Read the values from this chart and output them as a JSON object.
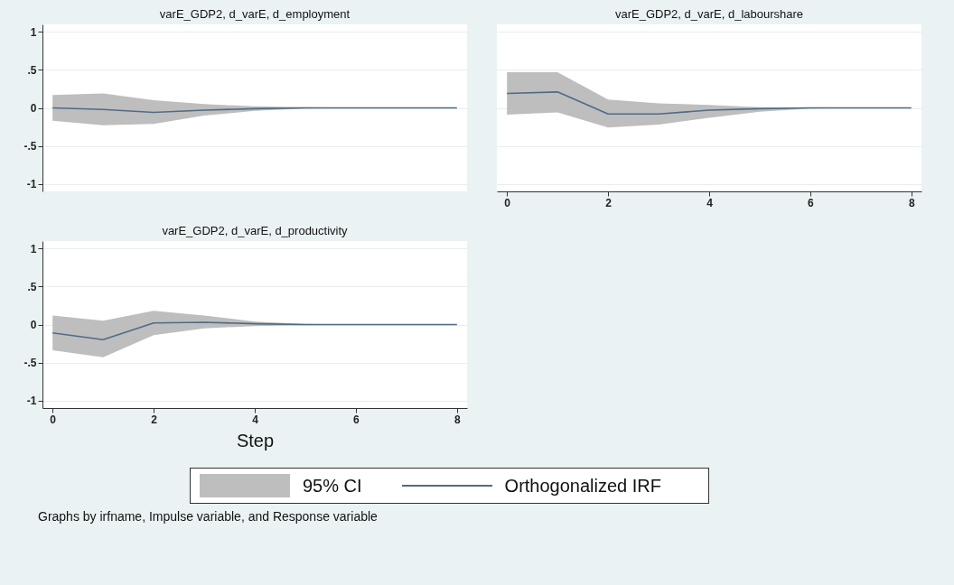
{
  "chart_data": [
    {
      "type": "line",
      "title": "varE_GDP2, d_varE, d_employment",
      "x": [
        0,
        1,
        2,
        3,
        4,
        5,
        6,
        7,
        8
      ],
      "xlim": [
        -0.2,
        8.2
      ],
      "xticks": [
        0,
        2,
        4,
        6,
        8
      ],
      "ylim": [
        -1.1,
        1.1
      ],
      "yticks": [
        {
          "value": -1,
          "label": "-1"
        },
        {
          "value": -0.5,
          "label": "-.5"
        },
        0,
        {
          "value": 0.5,
          "label": ".5"
        },
        1
      ],
      "grid": "y",
      "tick_labels": "y",
      "series": [
        {
          "color": "#4f6b85",
          "values": [
            0,
            -0.02,
            -0.06,
            -0.03,
            -0.01,
            0,
            0,
            0,
            0
          ],
          "lower": [
            -0.17,
            -0.23,
            -0.21,
            -0.1,
            -0.04,
            -0.01,
            0,
            0,
            0
          ],
          "upper": [
            0.17,
            0.19,
            0.1,
            0.05,
            0.02,
            0.01,
            0,
            0,
            0
          ]
        }
      ]
    },
    {
      "type": "line",
      "title": "varE_GDP2, d_varE, d_labourshare",
      "x": [
        0,
        1,
        2,
        3,
        4,
        5,
        6,
        7,
        8
      ],
      "xlim": [
        -0.2,
        8.2
      ],
      "xticks": [
        0,
        2,
        4,
        6,
        8
      ],
      "ylim": [
        -1.1,
        1.1
      ],
      "yticks": [
        -1,
        -0.5,
        0,
        0.5,
        1
      ],
      "grid": "y",
      "tick_labels": "x",
      "series": [
        {
          "color": "#4f6b85",
          "values": [
            0.19,
            0.21,
            -0.08,
            -0.08,
            -0.03,
            -0.01,
            0,
            0,
            0
          ],
          "lower": [
            -0.09,
            -0.06,
            -0.26,
            -0.22,
            -0.13,
            -0.05,
            -0.01,
            0,
            0
          ],
          "upper": [
            0.47,
            0.47,
            0.11,
            0.06,
            0.04,
            0.01,
            0,
            0,
            0
          ]
        }
      ]
    },
    {
      "type": "line",
      "title": "varE_GDP2, d_varE, d_productivity",
      "xlabel": "Step",
      "x": [
        0,
        1,
        2,
        3,
        4,
        5,
        6,
        7,
        8
      ],
      "xlim": [
        -0.2,
        8.2
      ],
      "xticks": [
        0,
        2,
        4,
        6,
        8
      ],
      "ylim": [
        -1.1,
        1.1
      ],
      "yticks": [
        {
          "value": -1,
          "label": "-1"
        },
        {
          "value": -0.5,
          "label": "-.5"
        },
        0,
        {
          "value": 0.5,
          "label": ".5"
        },
        1
      ],
      "grid": "y",
      "legend": "bottom",
      "annotations": [
        "95% CI",
        "Graphs by irfname, Impulse variable, and Response variable"
      ],
      "series": [
        {
          "name": "Orthogonalized IRF",
          "color": "#4f6b85",
          "values": [
            -0.11,
            -0.2,
            0.02,
            0.03,
            0.01,
            0,
            0,
            0,
            0
          ],
          "lower": [
            -0.34,
            -0.43,
            -0.14,
            -0.05,
            -0.02,
            -0.01,
            0,
            0,
            0
          ],
          "upper": [
            0.12,
            0.05,
            0.18,
            0.12,
            0.04,
            0.01,
            0,
            0,
            0
          ]
        }
      ]
    }
  ]
}
